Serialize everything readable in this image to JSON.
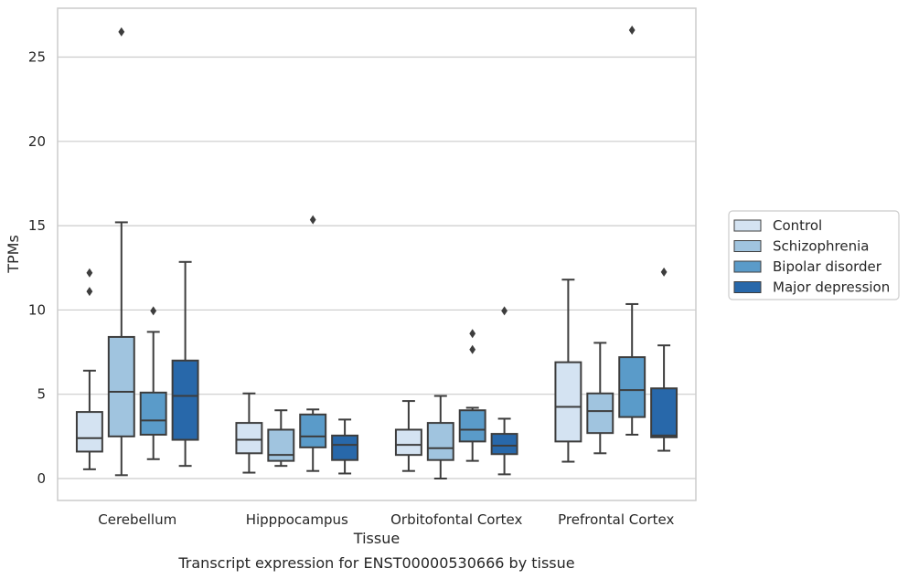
{
  "caption": "Transcript expression for ENST00000530666 by tissue",
  "chart_data": {
    "type": "box",
    "xlabel": "Tissue",
    "ylabel": "TPMs",
    "ylim": [
      -1.3,
      27.9
    ],
    "yticks": [
      0,
      5,
      10,
      15,
      20,
      25
    ],
    "grid": "horizontal",
    "legend_position": "right",
    "categories": [
      "Cerebellum",
      "Hipppocampus",
      "Orbitofontal Cortex",
      "Prefrontal Cortex"
    ],
    "series": [
      {
        "name": "Control",
        "color": "#d4e3f2",
        "boxes": [
          {
            "whisker_low": 0.55,
            "q1": 1.6,
            "median": 2.4,
            "q3": 3.95,
            "whisker_high": 6.4,
            "outliers": [
              12.2,
              11.1
            ]
          },
          {
            "whisker_low": 0.35,
            "q1": 1.5,
            "median": 2.3,
            "q3": 3.3,
            "whisker_high": 5.05,
            "outliers": []
          },
          {
            "whisker_low": 0.45,
            "q1": 1.4,
            "median": 2.0,
            "q3": 2.9,
            "whisker_high": 4.6,
            "outliers": []
          },
          {
            "whisker_low": 1.0,
            "q1": 2.2,
            "median": 4.25,
            "q3": 6.9,
            "whisker_high": 11.8,
            "outliers": []
          }
        ]
      },
      {
        "name": "Schizophrenia",
        "color": "#a0c4df",
        "boxes": [
          {
            "whisker_low": 0.2,
            "q1": 2.5,
            "median": 5.15,
            "q3": 8.4,
            "whisker_high": 15.2,
            "outliers": [
              26.5
            ]
          },
          {
            "whisker_low": 0.75,
            "q1": 1.05,
            "median": 1.4,
            "q3": 2.9,
            "whisker_high": 4.05,
            "outliers": []
          },
          {
            "whisker_low": 0.0,
            "q1": 1.1,
            "median": 1.8,
            "q3": 3.3,
            "whisker_high": 4.9,
            "outliers": []
          },
          {
            "whisker_low": 1.5,
            "q1": 2.7,
            "median": 4.0,
            "q3": 5.05,
            "whisker_high": 8.05,
            "outliers": []
          }
        ]
      },
      {
        "name": "Bipolar disorder",
        "color": "#5a9bc9",
        "boxes": [
          {
            "whisker_low": 1.15,
            "q1": 2.6,
            "median": 3.45,
            "q3": 5.1,
            "whisker_high": 8.7,
            "outliers": [
              9.95
            ]
          },
          {
            "whisker_low": 0.45,
            "q1": 1.85,
            "median": 2.5,
            "q3": 3.8,
            "whisker_high": 4.1,
            "outliers": [
              15.35
            ]
          },
          {
            "whisker_low": 1.05,
            "q1": 2.2,
            "median": 2.9,
            "q3": 4.05,
            "whisker_high": 4.2,
            "outliers": [
              8.6,
              7.65
            ]
          },
          {
            "whisker_low": 2.6,
            "q1": 3.65,
            "median": 5.25,
            "q3": 7.2,
            "whisker_high": 10.35,
            "outliers": [
              26.6
            ]
          }
        ]
      },
      {
        "name": "Major depression",
        "color": "#2868aa",
        "boxes": [
          {
            "whisker_low": 0.75,
            "q1": 2.3,
            "median": 4.9,
            "q3": 7.0,
            "whisker_high": 12.85,
            "outliers": []
          },
          {
            "whisker_low": 0.3,
            "q1": 1.1,
            "median": 2.0,
            "q3": 2.55,
            "whisker_high": 3.5,
            "outliers": []
          },
          {
            "whisker_low": 0.25,
            "q1": 1.45,
            "median": 1.95,
            "q3": 2.65,
            "whisker_high": 3.55,
            "outliers": [
              9.95
            ]
          },
          {
            "whisker_low": 1.65,
            "q1": 2.45,
            "median": 2.55,
            "q3": 5.35,
            "whisker_high": 7.9,
            "outliers": [
              12.25
            ]
          }
        ]
      }
    ]
  }
}
